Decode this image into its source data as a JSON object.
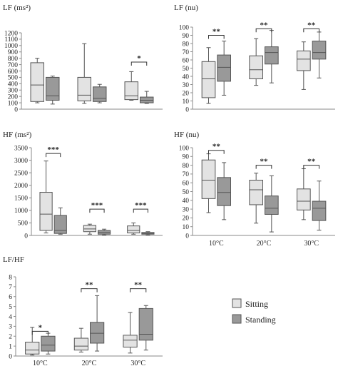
{
  "colors": {
    "sitting": "#e3e3e3",
    "standing": "#999999",
    "stroke": "#555555",
    "axis": "#8a8a8a"
  },
  "legend": {
    "sitting": "Sitting",
    "standing": "Standing"
  },
  "chart_data": [
    {
      "id": "lf_ms2",
      "type": "box",
      "title": "LF (ms²)",
      "ylim": [
        0,
        1200
      ],
      "yticks": [
        0,
        100,
        200,
        300,
        400,
        500,
        600,
        700,
        800,
        900,
        1000,
        1100,
        1200
      ],
      "categories": [
        "",
        "",
        ""
      ],
      "show_categories": false,
      "series": [
        {
          "key": "sitting",
          "boxes": [
            {
              "min": 100,
              "q1": 120,
              "median": 380,
              "q3": 730,
              "max": 800
            },
            {
              "min": 90,
              "q1": 130,
              "median": 220,
              "q3": 500,
              "max": 1030
            },
            {
              "min": 140,
              "q1": 150,
              "median": 210,
              "q3": 430,
              "max": 590
            }
          ]
        },
        {
          "key": "standing",
          "boxes": [
            {
              "min": 80,
              "q1": 140,
              "median": 210,
              "q3": 500,
              "max": 520
            },
            {
              "min": 100,
              "q1": 120,
              "median": 170,
              "q3": 350,
              "max": 390
            },
            {
              "min": 90,
              "q1": 100,
              "median": 140,
              "q3": 190,
              "max": 280
            }
          ]
        }
      ],
      "significance": [
        {
          "group": 2,
          "label": "*",
          "y": 740
        }
      ]
    },
    {
      "id": "lf_nu",
      "type": "box",
      "title": "LF (nu)",
      "ylim": [
        0,
        100
      ],
      "yticks": [
        0,
        10,
        20,
        30,
        40,
        50,
        60,
        70,
        80,
        90,
        100
      ],
      "categories": [
        "",
        "",
        ""
      ],
      "show_categories": false,
      "series": [
        {
          "key": "sitting",
          "boxes": [
            {
              "min": 7,
              "q1": 14,
              "median": 37,
              "q3": 58,
              "max": 75
            },
            {
              "min": 29,
              "q1": 37,
              "median": 48,
              "q3": 65,
              "max": 86
            },
            {
              "min": 24,
              "q1": 47,
              "median": 61,
              "q3": 71,
              "max": 82
            }
          ]
        },
        {
          "key": "standing",
          "boxes": [
            {
              "min": 17,
              "q1": 34,
              "median": 51,
              "q3": 66,
              "max": 83
            },
            {
              "min": 32,
              "q1": 55,
              "median": 69,
              "q3": 76,
              "max": 96
            },
            {
              "min": 38,
              "q1": 61,
              "median": 69,
              "q3": 83,
              "max": 94
            }
          ]
        }
      ],
      "significance": [
        {
          "group": 0,
          "label": "**",
          "y": 90
        },
        {
          "group": 1,
          "label": "**",
          "y": 98
        },
        {
          "group": 2,
          "label": "**",
          "y": 98
        }
      ]
    },
    {
      "id": "hf_ms2",
      "type": "box",
      "title": "HF (ms²)",
      "ylim": [
        0,
        3500
      ],
      "yticks": [
        0,
        500,
        1000,
        1500,
        2000,
        2500,
        3000,
        3500
      ],
      "categories": [
        "",
        "",
        ""
      ],
      "show_categories": false,
      "series": [
        {
          "key": "sitting",
          "boxes": [
            {
              "min": 100,
              "q1": 200,
              "median": 850,
              "q3": 1720,
              "max": 2970
            },
            {
              "min": 50,
              "q1": 150,
              "median": 260,
              "q3": 400,
              "max": 450
            },
            {
              "min": 50,
              "q1": 100,
              "median": 200,
              "q3": 380,
              "max": 500
            }
          ]
        },
        {
          "key": "standing",
          "boxes": [
            {
              "min": 50,
              "q1": 80,
              "median": 200,
              "q3": 800,
              "max": 1100
            },
            {
              "min": 20,
              "q1": 50,
              "median": 120,
              "q3": 200,
              "max": 250
            },
            {
              "min": 20,
              "q1": 50,
              "median": 80,
              "q3": 120,
              "max": 150
            }
          ]
        }
      ],
      "significance": [
        {
          "group": 0,
          "label": "***",
          "y": 3270
        },
        {
          "group": 1,
          "label": "***",
          "y": 1050
        },
        {
          "group": 2,
          "label": "***",
          "y": 1050
        }
      ]
    },
    {
      "id": "hf_nu",
      "type": "box",
      "title": "HF (nu)",
      "ylim": [
        0,
        100
      ],
      "yticks": [
        0,
        10,
        20,
        30,
        40,
        50,
        60,
        70,
        80,
        90,
        100
      ],
      "categories": [
        "10°C",
        "20°C",
        "30°C"
      ],
      "show_categories": true,
      "series": [
        {
          "key": "sitting",
          "boxes": [
            {
              "min": 26,
              "q1": 42,
              "median": 63,
              "q3": 86,
              "max": 93
            },
            {
              "min": 14,
              "q1": 35,
              "median": 52,
              "q3": 63,
              "max": 71
            },
            {
              "min": 18,
              "q1": 29,
              "median": 39,
              "q3": 53,
              "max": 76
            }
          ]
        },
        {
          "key": "standing",
          "boxes": [
            {
              "min": 18,
              "q1": 34,
              "median": 49,
              "q3": 66,
              "max": 83
            },
            {
              "min": 4,
              "q1": 24,
              "median": 31,
              "q3": 45,
              "max": 68
            },
            {
              "min": 6,
              "q1": 17,
              "median": 31,
              "q3": 39,
              "max": 62
            }
          ]
        }
      ],
      "significance": [
        {
          "group": 0,
          "label": "**",
          "y": 97
        },
        {
          "group": 1,
          "label": "**",
          "y": 80
        },
        {
          "group": 2,
          "label": "**",
          "y": 80
        }
      ]
    },
    {
      "id": "lf_hf",
      "type": "box",
      "title": "LF/HF",
      "ylim": [
        0,
        8
      ],
      "yticks": [
        0,
        1,
        2,
        3,
        4,
        5,
        6,
        7,
        8
      ],
      "categories": [
        "10°C",
        "20°C",
        "30°C"
      ],
      "show_categories": true,
      "series": [
        {
          "key": "sitting",
          "boxes": [
            {
              "min": 0.1,
              "q1": 0.2,
              "median": 0.6,
              "q3": 1.4,
              "max": 2.9
            },
            {
              "min": 0.4,
              "q1": 0.6,
              "median": 1.0,
              "q3": 1.8,
              "max": 2.8
            },
            {
              "min": 0.3,
              "q1": 0.9,
              "median": 1.6,
              "q3": 2.1,
              "max": 4.4
            }
          ]
        },
        {
          "key": "standing",
          "boxes": [
            {
              "min": 0.2,
              "q1": 0.5,
              "median": 1.1,
              "q3": 2.0,
              "max": 2.3
            },
            {
              "min": 0.5,
              "q1": 1.3,
              "median": 2.3,
              "q3": 3.4,
              "max": 6.1
            },
            {
              "min": 0.6,
              "q1": 1.6,
              "median": 2.2,
              "q3": 4.8,
              "max": 5.1
            }
          ]
        }
      ],
      "significance": [
        {
          "group": 0,
          "label": "*",
          "y": 2.5
        },
        {
          "group": 1,
          "label": "**",
          "y": 6.8
        },
        {
          "group": 2,
          "label": "**",
          "y": 6.8
        }
      ]
    }
  ]
}
